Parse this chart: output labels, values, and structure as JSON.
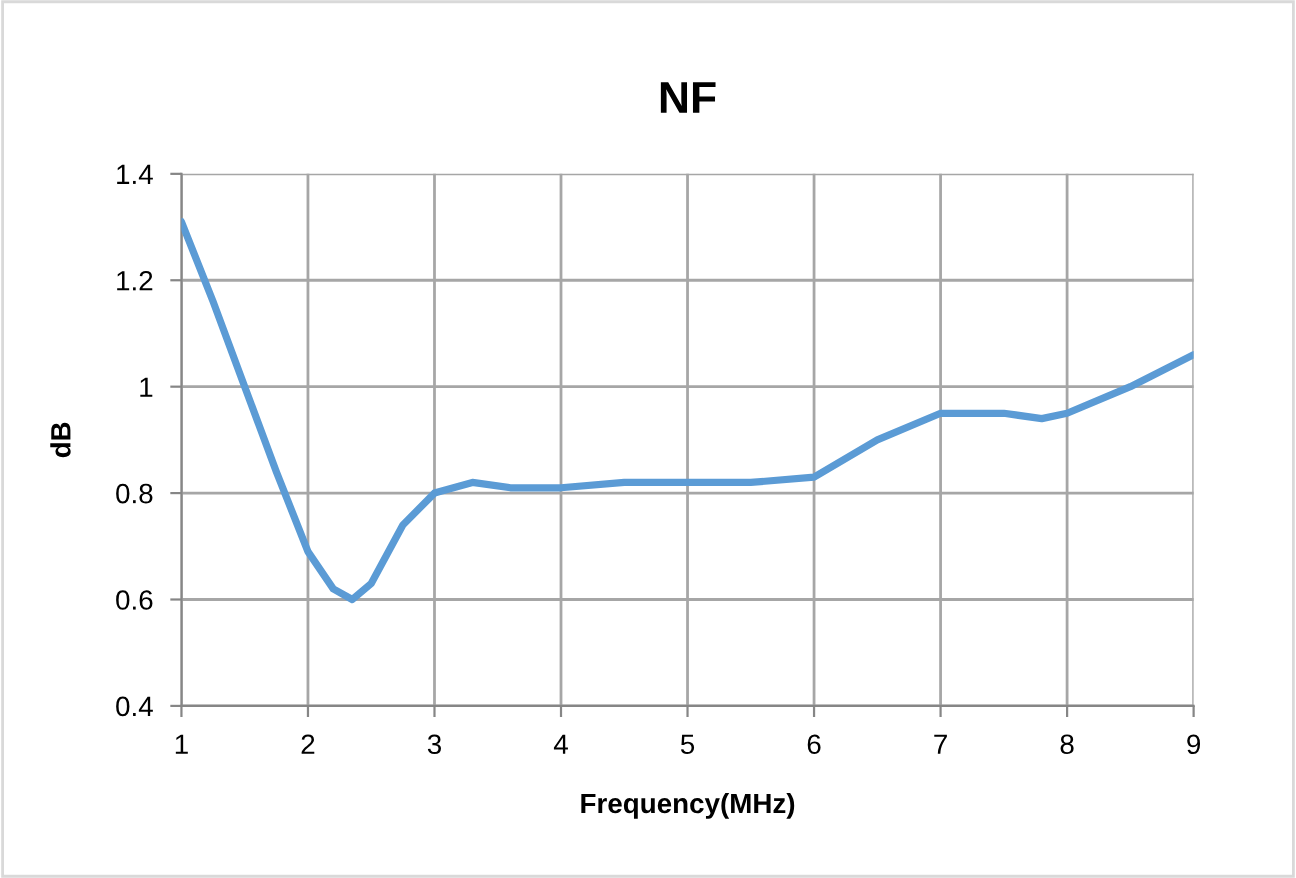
{
  "chart_data": {
    "type": "line",
    "title": "NF",
    "xlabel": "Frequency(MHz)",
    "ylabel": "dB",
    "series": [
      {
        "color": "#5b9bd5",
        "x": [
          1,
          1.25,
          1.5,
          1.75,
          2,
          2.2,
          2.35,
          2.5,
          2.75,
          3,
          3.3,
          3.6,
          4,
          4.5,
          5,
          5.5,
          6,
          6.5,
          7,
          7.25,
          7.5,
          7.8,
          8,
          8.5,
          9
        ],
        "values": [
          1.31,
          1.16,
          1.0,
          0.84,
          0.69,
          0.62,
          0.6,
          0.63,
          0.74,
          0.8,
          0.82,
          0.81,
          0.81,
          0.82,
          0.82,
          0.82,
          0.83,
          0.9,
          0.95,
          0.95,
          0.95,
          0.94,
          0.95,
          1.0,
          1.06
        ]
      }
    ],
    "xlim": [
      1,
      9
    ],
    "xticks": [
      1,
      2,
      3,
      4,
      5,
      6,
      7,
      8,
      9
    ],
    "ylim": [
      0.4,
      1.4
    ],
    "yticks": [
      {
        "value": 0.4,
        "label": "0.4"
      },
      {
        "value": 0.6,
        "label": "0.6"
      },
      {
        "value": 0.8,
        "label": "0.8"
      },
      {
        "value": 1.0,
        "label": "1"
      },
      {
        "value": 1.2,
        "label": "1.2"
      },
      {
        "value": 1.4,
        "label": "1.4"
      }
    ],
    "grid": true
  }
}
